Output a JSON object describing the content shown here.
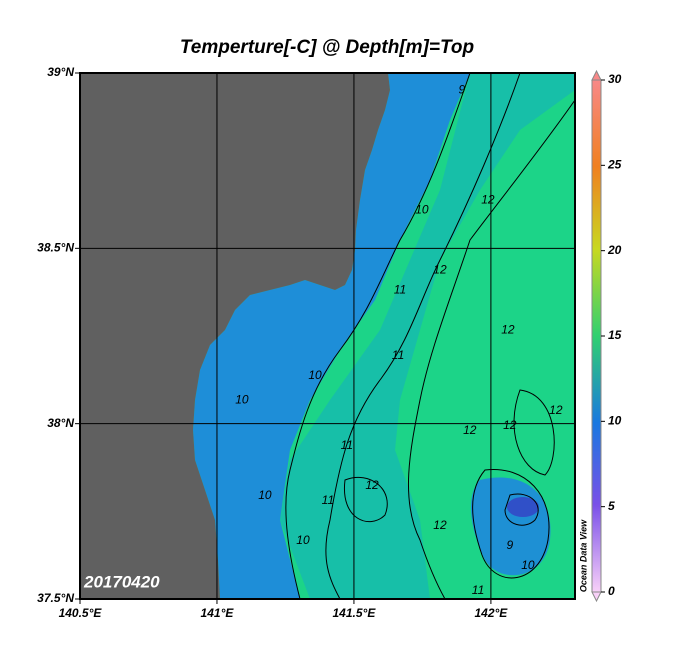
{
  "chart_data": {
    "type": "map",
    "title": "Temperture[-C] @ Depth[m]=Top",
    "date_label": "20170420",
    "watermark": "Ocean Data View",
    "xlim": [
      140.5,
      142.307
    ],
    "ylim": [
      37.5,
      39
    ],
    "xticks": [
      {
        "value": 140.5,
        "label": "140.5°E"
      },
      {
        "value": 141,
        "label": "141°E"
      },
      {
        "value": 141.5,
        "label": "141.5°E"
      },
      {
        "value": 142,
        "label": "142°E"
      }
    ],
    "yticks": [
      {
        "value": 37.5,
        "label": "37.5°N"
      },
      {
        "value": 38,
        "label": "38°N"
      },
      {
        "value": 38.5,
        "label": "38.5°N"
      },
      {
        "value": 39,
        "label": "39°N"
      }
    ],
    "grid": true,
    "colorbar": {
      "lim": [
        0,
        30
      ],
      "ticks": [
        0,
        5,
        10,
        15,
        20,
        25,
        30
      ]
    },
    "contour_labels": [
      {
        "value": 9,
        "lon": 141.894,
        "lat": 38.951
      },
      {
        "value": 10,
        "lon": 141.748,
        "lat": 38.609
      },
      {
        "value": 12,
        "lon": 141.989,
        "lat": 38.637
      },
      {
        "value": 12,
        "lon": 141.814,
        "lat": 38.437
      },
      {
        "value": 11,
        "lon": 141.668,
        "lat": 38.38
      },
      {
        "value": 12,
        "lon": 142.062,
        "lat": 38.266
      },
      {
        "value": 11,
        "lon": 141.661,
        "lat": 38.194
      },
      {
        "value": 10,
        "lon": 141.358,
        "lat": 38.137
      },
      {
        "value": 10,
        "lon": 141.091,
        "lat": 38.066
      },
      {
        "value": 11,
        "lon": 141.474,
        "lat": 37.937
      },
      {
        "value": 12,
        "lon": 141.923,
        "lat": 37.98
      },
      {
        "value": 12,
        "lon": 142.069,
        "lat": 37.994
      },
      {
        "value": 12,
        "lon": 142.237,
        "lat": 38.037
      },
      {
        "value": 10,
        "lon": 141.175,
        "lat": 37.794
      },
      {
        "value": 11,
        "lon": 141.405,
        "lat": 37.78
      },
      {
        "value": 12,
        "lon": 141.566,
        "lat": 37.823
      },
      {
        "value": 12,
        "lon": 141.814,
        "lat": 37.709
      },
      {
        "value": 10,
        "lon": 141.314,
        "lat": 37.666
      },
      {
        "value": 9,
        "lon": 142.069,
        "lat": 37.651
      },
      {
        "value": 10,
        "lon": 142.135,
        "lat": 37.594
      },
      {
        "value": 11,
        "lon": 141.953,
        "lat": 37.523
      }
    ]
  }
}
